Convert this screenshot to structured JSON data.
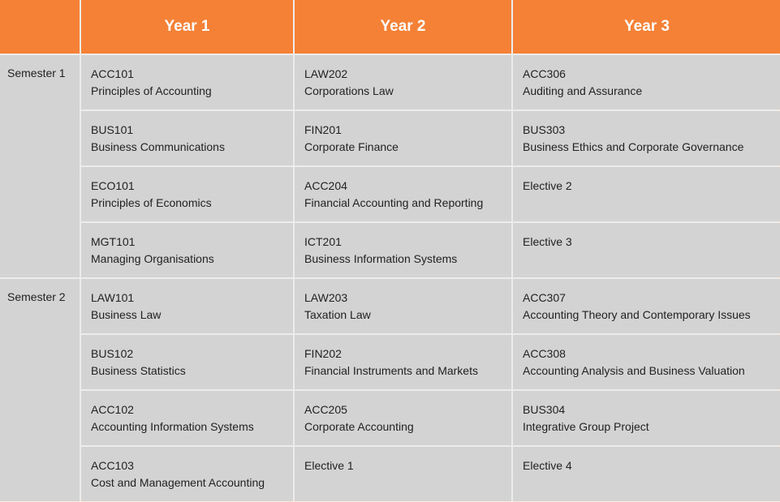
{
  "header": {
    "corner": "",
    "years": [
      "Year 1",
      "Year 2",
      "Year 3"
    ]
  },
  "semesters": [
    {
      "label": "Semester 1",
      "rows": [
        [
          {
            "code": "ACC101",
            "name": "Principles of Accounting"
          },
          {
            "code": "LAW202",
            "name": "Corporations Law"
          },
          {
            "code": "ACC306",
            "name": "Auditing and Assurance"
          }
        ],
        [
          {
            "code": "BUS101",
            "name": "Business Communications"
          },
          {
            "code": "FIN201",
            "name": "Corporate Finance"
          },
          {
            "code": "BUS303",
            "name": "Business Ethics and Corporate Governance"
          }
        ],
        [
          {
            "code": "ECO101",
            "name": "Principles of Economics"
          },
          {
            "code": "ACC204",
            "name": "Financial Accounting and Reporting"
          },
          {
            "code": "Elective 2",
            "name": ""
          }
        ],
        [
          {
            "code": "MGT101",
            "name": "Managing Organisations"
          },
          {
            "code": "ICT201",
            "name": "Business Information Systems"
          },
          {
            "code": "Elective 3",
            "name": ""
          }
        ]
      ]
    },
    {
      "label": "Semester 2",
      "rows": [
        [
          {
            "code": "LAW101",
            "name": "Business Law"
          },
          {
            "code": "LAW203",
            "name": "Taxation Law"
          },
          {
            "code": "ACC307",
            "name": "Accounting Theory and Contemporary Issues"
          }
        ],
        [
          {
            "code": "BUS102",
            "name": "Business Statistics"
          },
          {
            "code": "FIN202",
            "name": "Financial Instruments and Markets"
          },
          {
            "code": "ACC308",
            "name": "Accounting Analysis and Business Valuation"
          }
        ],
        [
          {
            "code": "ACC102",
            "name": "Accounting Information Systems"
          },
          {
            "code": "ACC205",
            "name": "Corporate Accounting"
          },
          {
            "code": "BUS304",
            "name": "Integrative Group Project"
          }
        ],
        [
          {
            "code": "ACC103",
            "name": "Cost and Management Accounting"
          },
          {
            "code": "Elective 1",
            "name": ""
          },
          {
            "code": "Elective 4",
            "name": ""
          }
        ]
      ]
    }
  ]
}
